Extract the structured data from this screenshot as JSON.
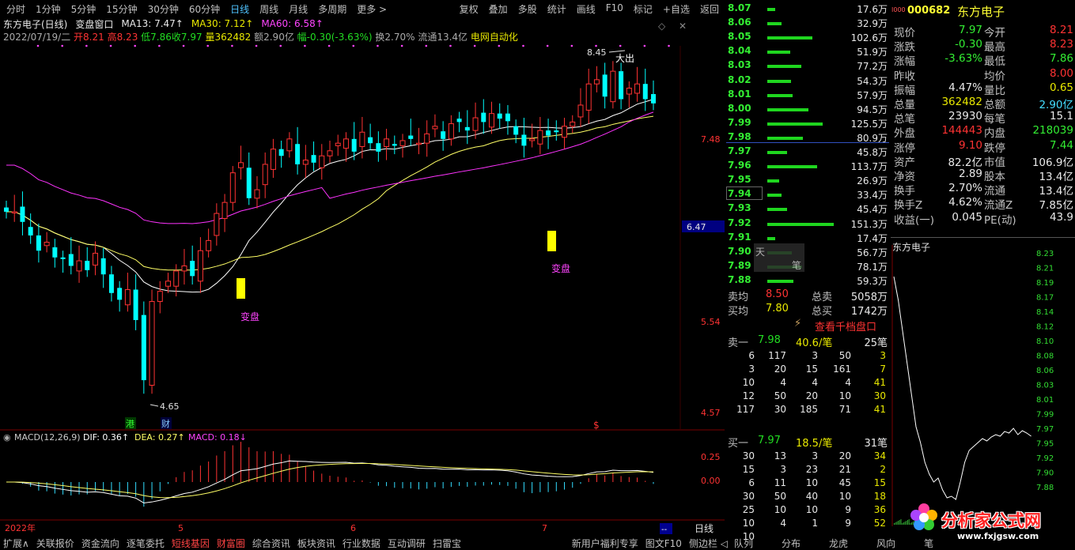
{
  "topbar": {
    "periods": [
      "分时",
      "1分钟",
      "5分钟",
      "15分钟",
      "30分钟",
      "60分钟",
      "日线",
      "周线",
      "月线",
      "多周期",
      "更多 >"
    ],
    "active": "日线",
    "tools": [
      "复权",
      "叠加",
      "多股",
      "统计",
      "画线",
      "F10",
      "标记",
      "+自选",
      "返回"
    ]
  },
  "chart": {
    "title": "东方电子(日线)",
    "window": "变盘窗口",
    "ma13": "MA13: 7.47↑",
    "ma30": "MA30: 7.12↑",
    "ma60": "MA60: 6.58↑",
    "info_date": "2022/07/19/二",
    "info_open": "开8.21",
    "info_high": "高8.23",
    "info_low": "低7.86",
    "info_close": "收7.97",
    "info_vol": "量362482",
    "info_amt": "额2.90亿",
    "info_chg": "幅-0.30(-3.63%)",
    "info_turn": "换2.70%",
    "info_float": "流通13.4亿",
    "info_sector": "电网自动化",
    "price_labels": [
      "7.48",
      "6.47",
      "5.54",
      "4.57"
    ],
    "high_mark": "8.45",
    "low_mark": "4.65",
    "ann_dachu": "大出",
    "ann_bianpan1": "变盘",
    "ann_bianpan2": "变盘",
    "badge_gang": "港",
    "badge_cai": "财",
    "badge_s": "$",
    "macd_title": "MACD(12,26,9)",
    "dif": "DIF: 0.36↑",
    "dea": "DEA: 0.27↑",
    "macd": "MACD: 0.18↓",
    "macd_labels": [
      "0.25",
      "0.00"
    ],
    "months": [
      "2022年",
      "5",
      "6",
      "7"
    ],
    "period_label": "日线",
    "corner_box": "--",
    "colors": {
      "up": "#ff3333",
      "down": "#00ffff",
      "ma13": "#ffffff",
      "ma30": "#ffff66",
      "ma60": "#ff33ff"
    }
  },
  "orderbook": {
    "levels": [
      {
        "p": "8.07",
        "v": "17.6万",
        "w": 0.12,
        "c": "red"
      },
      {
        "p": "8.06",
        "v": "32.9万",
        "w": 0.22,
        "c": "red"
      },
      {
        "p": "8.05",
        "v": "102.6万",
        "w": 0.68,
        "c": "red"
      },
      {
        "p": "8.04",
        "v": "51.9万",
        "w": 0.34,
        "c": "red"
      },
      {
        "p": "8.03",
        "v": "77.2万",
        "w": 0.51,
        "c": "red"
      },
      {
        "p": "8.02",
        "v": "54.3万",
        "w": 0.36,
        "c": "red"
      },
      {
        "p": "8.01",
        "v": "57.9万",
        "w": 0.38,
        "c": "red"
      },
      {
        "p": "8.00",
        "v": "94.5万",
        "w": 0.62,
        "c": "red"
      },
      {
        "p": "7.99",
        "v": "125.5万",
        "w": 0.83,
        "c": "red"
      },
      {
        "p": "7.98",
        "v": "80.9万",
        "w": 0.53,
        "c": "red"
      },
      {
        "p": "7.97",
        "v": "45.8万",
        "w": 0.3,
        "c": "green"
      },
      {
        "p": "7.96",
        "v": "113.7万",
        "w": 0.75,
        "c": "green"
      },
      {
        "p": "7.95",
        "v": "26.9万",
        "w": 0.18,
        "c": "green"
      },
      {
        "p": "7.94",
        "v": "33.4万",
        "w": 0.22,
        "c": "green"
      },
      {
        "p": "7.93",
        "v": "45.4万",
        "w": 0.3,
        "c": "green"
      },
      {
        "p": "7.92",
        "v": "151.3万",
        "w": 1.0,
        "c": "green"
      },
      {
        "p": "7.91",
        "v": "17.4万",
        "w": 0.12,
        "c": "green"
      },
      {
        "p": "7.90",
        "v": "56.7万",
        "w": 0.37,
        "c": "green"
      },
      {
        "p": "7.89",
        "v": "78.1万",
        "w": 0.52,
        "c": "green"
      },
      {
        "p": "7.88",
        "v": "59.3万",
        "w": 0.39,
        "c": "green"
      }
    ],
    "sell_avg_label": "卖均",
    "sell_avg": "8.50",
    "sell_total_label": "总卖",
    "sell_total": "5058万",
    "buy_avg_label": "买均",
    "buy_avg": "7.80",
    "buy_total_label": "总买",
    "buy_total": "1742万",
    "link": "查看千档盘口",
    "popup_a": "天",
    "popup_b": "笔",
    "sell1_label": "卖一",
    "sell1_price": "7.98",
    "sell1_per": "40.6/笔",
    "sell1_count": "25笔",
    "sell_rows": [
      [
        "6",
        "117",
        "3",
        "50",
        "3"
      ],
      [
        "3",
        "20",
        "15",
        "161",
        "7"
      ],
      [
        "10",
        "4",
        "4",
        "4",
        "41"
      ],
      [
        "12",
        "50",
        "20",
        "10",
        "30"
      ],
      [
        "117",
        "30",
        "185",
        "71",
        "41"
      ]
    ],
    "buy1_label": "买一",
    "buy1_price": "7.97",
    "buy1_per": "18.5/笔",
    "buy1_count": "31笔",
    "buy_rows": [
      [
        "30",
        "13",
        "3",
        "20",
        "34"
      ],
      [
        "15",
        "3",
        "23",
        "21",
        "2"
      ],
      [
        "6",
        "11",
        "10",
        "45",
        "15"
      ],
      [
        "30",
        "50",
        "40",
        "10",
        "18"
      ],
      [
        "25",
        "10",
        "10",
        "9",
        "36"
      ],
      [
        "10",
        "4",
        "1",
        "9",
        "52"
      ],
      [
        "10",
        "",
        "",
        "",
        ""
      ]
    ]
  },
  "quote": {
    "code": "000682",
    "name": "东方电子",
    "code_prefix": "I000",
    "rows": [
      {
        "l1": "现价",
        "v1": "7.97",
        "c1": "green",
        "l2": "今开",
        "v2": "8.21",
        "c2": "red"
      },
      {
        "l1": "涨跌",
        "v1": "-0.30",
        "c1": "green",
        "l2": "最高",
        "v2": "8.23",
        "c2": "red"
      },
      {
        "l1": "涨幅",
        "v1": "-3.63%",
        "c1": "green",
        "l2": "最低",
        "v2": "7.86",
        "c2": "green"
      },
      {
        "l1": "昨收",
        "v1": "",
        "c1": "white",
        "l2": "均价",
        "v2": "8.00",
        "c2": "red"
      },
      {
        "l1": "振幅",
        "v1": "4.47%",
        "c1": "white",
        "l2": "量比",
        "v2": "0.65",
        "c2": "yellow"
      },
      {
        "l1": "总量",
        "v1": "362482",
        "c1": "yellow",
        "l2": "总额",
        "v2": "2.90亿",
        "c2": "cyan"
      },
      {
        "l1": "总笔",
        "v1": "23930",
        "c1": "white",
        "l2": "每笔",
        "v2": "15.1",
        "c2": "white"
      },
      {
        "l1": "外盘",
        "v1": "144443",
        "c1": "red",
        "l2": "内盘",
        "v2": "218039",
        "c2": "green"
      },
      {
        "l1": "涨停",
        "v1": "9.10",
        "c1": "red",
        "l2": "跌停",
        "v2": "7.44",
        "c2": "green"
      },
      {
        "l1": "资产",
        "v1": "82.2亿",
        "c1": "white",
        "l2": "市值",
        "v2": "106.9亿",
        "c2": "white"
      },
      {
        "l1": "净资",
        "v1": "2.89",
        "c1": "white",
        "l2": "股本",
        "v2": "13.4亿",
        "c2": "white"
      },
      {
        "l1": "换手",
        "v1": "2.70%",
        "c1": "white",
        "l2": "流通",
        "v2": "13.4亿",
        "c2": "white"
      },
      {
        "l1": "换手Z",
        "v1": "4.62%",
        "c1": "white",
        "l2": "流通Z",
        "v2": "7.85亿",
        "c2": "white"
      },
      {
        "l1": "收益(一)",
        "v1": "0.045",
        "c1": "white",
        "l2": "PE(动)",
        "v2": "43.9",
        "c2": "white"
      }
    ],
    "mini_title": "东方电子",
    "mini_labels": [
      "8.23",
      "8.21",
      "8.19",
      "8.17",
      "8.14",
      "8.12",
      "8.10",
      "8.08",
      "8.06",
      "8.03",
      "8.01",
      "7.99",
      "7.97",
      "7.95",
      "7.92",
      "7.90",
      "7.88"
    ]
  },
  "bottombar": {
    "items": [
      "扩展∧",
      "关联报价",
      "资金流向",
      "逐笔委托",
      "短线基因",
      "财富圈",
      "综合资讯",
      "板块资讯",
      "行业数据",
      "互动调研",
      "扫雷宝"
    ],
    "red_items": [
      "短线基因",
      "财富圈"
    ],
    "promo": "新用户福利专享",
    "right": [
      "图文F10",
      "侧边栏 ◁"
    ],
    "tabs": [
      "队列",
      "分布",
      "龙虎",
      "风向",
      "笔"
    ]
  },
  "watermark": {
    "cn": "分析家公式网",
    "url": "www.fxjgsw.com"
  }
}
